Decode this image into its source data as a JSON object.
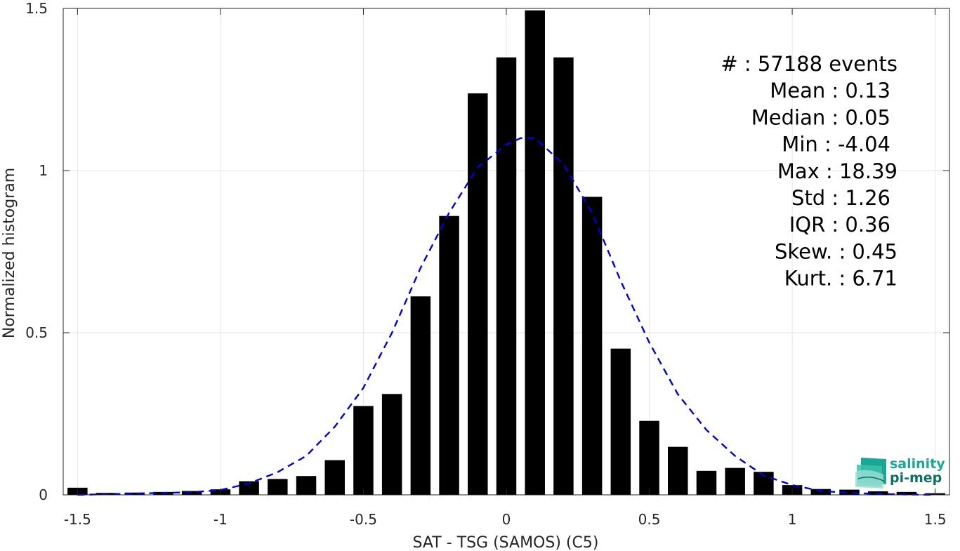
{
  "chart_data": {
    "type": "bar",
    "xlabel": "SAT - TSG (SAMOS) (C5)",
    "ylabel": "Normalized histogram",
    "xlim": [
      -1.55,
      1.55
    ],
    "ylim": [
      0,
      1.5
    ],
    "grid": true,
    "x_ticks": [
      {
        "value": -1.5,
        "label": "-1.5"
      },
      {
        "value": -1,
        "label": "-1"
      },
      {
        "value": -0.5,
        "label": "-0.5"
      },
      {
        "value": 0,
        "label": "0"
      },
      {
        "value": 0.5,
        "label": "0.5"
      },
      {
        "value": 1,
        "label": "1"
      },
      {
        "value": 1.5,
        "label": "1.5"
      }
    ],
    "y_ticks": [
      {
        "value": 0,
        "label": "0"
      },
      {
        "value": 0.5,
        "label": "0.5"
      },
      {
        "value": 1,
        "label": "1"
      },
      {
        "value": 1.5,
        "label": "1.5"
      }
    ],
    "bar_color": "#000000",
    "bar_width": 0.07,
    "bins": [
      {
        "x": -1.5,
        "y": 0.022
      },
      {
        "x": -1.4,
        "y": 0.006
      },
      {
        "x": -1.3,
        "y": 0.007
      },
      {
        "x": -1.2,
        "y": 0.009
      },
      {
        "x": -1.1,
        "y": 0.012
      },
      {
        "x": -1.0,
        "y": 0.017
      },
      {
        "x": -0.9,
        "y": 0.042
      },
      {
        "x": -0.8,
        "y": 0.049
      },
      {
        "x": -0.7,
        "y": 0.058
      },
      {
        "x": -0.6,
        "y": 0.107
      },
      {
        "x": -0.5,
        "y": 0.274
      },
      {
        "x": -0.4,
        "y": 0.311
      },
      {
        "x": -0.3,
        "y": 0.612
      },
      {
        "x": -0.2,
        "y": 0.86
      },
      {
        "x": -0.1,
        "y": 1.238
      },
      {
        "x": 0.0,
        "y": 1.349
      },
      {
        "x": 0.1,
        "y": 1.494
      },
      {
        "x": 0.2,
        "y": 1.349
      },
      {
        "x": 0.3,
        "y": 0.919
      },
      {
        "x": 0.4,
        "y": 0.451
      },
      {
        "x": 0.5,
        "y": 0.228
      },
      {
        "x": 0.6,
        "y": 0.148
      },
      {
        "x": 0.7,
        "y": 0.074
      },
      {
        "x": 0.8,
        "y": 0.083
      },
      {
        "x": 0.9,
        "y": 0.071
      },
      {
        "x": 1.0,
        "y": 0.03
      },
      {
        "x": 1.1,
        "y": 0.018
      },
      {
        "x": 1.2,
        "y": 0.016
      },
      {
        "x": 1.3,
        "y": 0.011
      },
      {
        "x": 1.4,
        "y": 0.009
      },
      {
        "x": 1.5,
        "y": 0.005
      }
    ],
    "fit_curve": {
      "style": "dashed",
      "color": "#0000dd",
      "x": [
        -1.5,
        -1.3,
        -1.1,
        -1.0,
        -0.9,
        -0.8,
        -0.7,
        -0.6,
        -0.5,
        -0.4,
        -0.3,
        -0.2,
        -0.1,
        0.0,
        0.05,
        0.1,
        0.2,
        0.3,
        0.4,
        0.5,
        0.6,
        0.7,
        0.8,
        0.9,
        1.0,
        1.1,
        1.2,
        1.3,
        1.4,
        1.5
      ],
      "y": [
        0.0,
        0.004,
        0.008,
        0.015,
        0.035,
        0.07,
        0.12,
        0.21,
        0.33,
        0.5,
        0.7,
        0.87,
        1.01,
        1.08,
        1.1,
        1.1,
        1.02,
        0.87,
        0.66,
        0.47,
        0.31,
        0.2,
        0.12,
        0.06,
        0.03,
        0.012,
        0.006,
        0.003,
        0.001,
        0.0
      ]
    }
  },
  "stats": [
    {
      "label": "#  : 57188 events",
      "anchor": "end",
      "offset": 0
    },
    {
      "label": "Mean : 0.13",
      "anchor": "end",
      "offset": -10
    },
    {
      "label": "Median : 0.05",
      "anchor": "end",
      "offset": -10
    },
    {
      "label": "Min : -4.04",
      "anchor": "end",
      "offset": -10
    },
    {
      "label": "Max : 18.39",
      "anchor": "end",
      "offset": 0
    },
    {
      "label": "Std : 1.26",
      "anchor": "end",
      "offset": -10
    },
    {
      "label": "IQR : 0.36",
      "anchor": "end",
      "offset": -10
    },
    {
      "label": "Skew. : 0.45",
      "anchor": "end",
      "offset": 0
    },
    {
      "label": "Kurt. : 6.71",
      "anchor": "end",
      "offset": 0
    }
  ],
  "logo": {
    "line1": "salinity",
    "line2": "pi-mep",
    "color": "#1aa894",
    "dark_color": "#0f6f64"
  }
}
